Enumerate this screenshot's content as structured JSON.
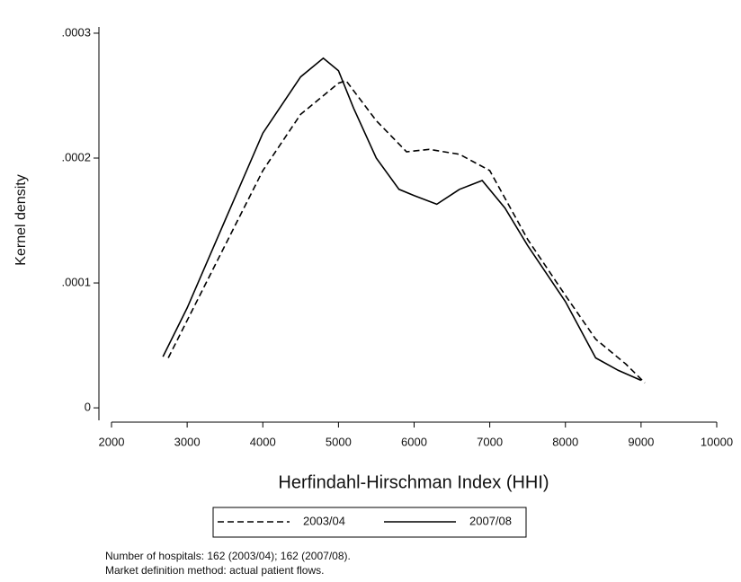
{
  "chart_data": {
    "type": "line",
    "xlabel": "Herfindahl-Hirschman Index (HHI)",
    "ylabel": "Kernel density",
    "xlim": [
      2000,
      10000
    ],
    "ylim": [
      -1e-05,
      0.000305
    ],
    "xticks": [
      2000,
      3000,
      4000,
      5000,
      6000,
      7000,
      8000,
      9000,
      10000
    ],
    "yticks": [
      0,
      {
        "value": 0.0001,
        "label": ".0001"
      },
      {
        "value": 0.0002,
        "label": ".0002"
      },
      {
        "value": 0.0003,
        "label": ".0003"
      }
    ],
    "series": [
      {
        "name": "2003/04",
        "color": "#000000",
        "dash": true,
        "x": [
          2750,
          3000,
          3500,
          4000,
          4500,
          5000,
          5100,
          5500,
          5900,
          6200,
          6600,
          7000,
          7500,
          8000,
          8400,
          8800,
          9050
        ],
        "values": [
          4e-05,
          7e-05,
          0.00013,
          0.00019,
          0.000235,
          0.00026,
          0.000262,
          0.00023,
          0.000205,
          0.000207,
          0.000203,
          0.00019,
          0.000135,
          9e-05,
          5.5e-05,
          3.5e-05,
          2e-05
        ]
      },
      {
        "name": "2007/08",
        "color": "#000000",
        "dash": false,
        "x": [
          2680,
          3000,
          3500,
          4000,
          4500,
          4800,
          5000,
          5200,
          5500,
          5800,
          6000,
          6300,
          6600,
          6900,
          7200,
          7500,
          8000,
          8400,
          8700,
          9000
        ],
        "values": [
          4.1e-05,
          8e-05,
          0.00015,
          0.00022,
          0.000265,
          0.00028,
          0.00027,
          0.00024,
          0.0002,
          0.000175,
          0.00017,
          0.000163,
          0.000175,
          0.000182,
          0.00016,
          0.00013,
          8.5e-05,
          4e-05,
          3e-05,
          2.2e-05
        ]
      }
    ],
    "notes": [
      "Number of hospitals: 162 (2003/04); 162 (2007/08).",
      "Market definition method: actual patient flows."
    ]
  }
}
